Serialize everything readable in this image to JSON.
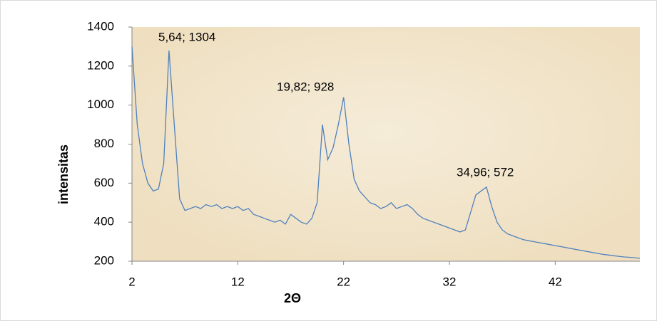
{
  "chart_data": {
    "type": "line",
    "x_label": "2Θ",
    "y_label": "intensitas",
    "x": [
      2,
      2.5,
      3,
      3.5,
      4,
      4.5,
      5,
      5.5,
      6,
      6.5,
      7,
      7.5,
      8,
      8.5,
      9,
      9.5,
      10,
      10.5,
      11,
      11.5,
      12,
      12.5,
      13,
      13.5,
      14,
      14.5,
      15,
      15.5,
      16,
      16.5,
      17,
      17.5,
      18,
      18.5,
      19,
      19.5,
      20,
      20.5,
      21,
      21.5,
      22,
      22.5,
      23,
      23.5,
      24,
      24.5,
      25,
      25.5,
      26,
      26.5,
      27,
      27.5,
      28,
      28.5,
      29,
      29.5,
      30,
      30.5,
      31,
      31.5,
      32,
      32.5,
      33,
      33.5,
      34,
      34.5,
      35,
      35.5,
      36,
      36.5,
      37,
      37.5,
      38,
      38.5,
      39,
      39.5,
      40,
      40.5,
      41,
      41.5,
      42,
      42.5,
      43,
      43.5,
      44,
      44.5,
      45,
      45.5,
      46,
      46.5,
      47,
      47.5,
      48,
      48.5,
      49,
      49.5,
      50
    ],
    "series": [
      {
        "color": "#4f81bd",
        "values": [
          1300,
          900,
          700,
          600,
          560,
          570,
          700,
          1280,
          900,
          520,
          460,
          470,
          480,
          470,
          490,
          480,
          490,
          470,
          480,
          470,
          480,
          460,
          470,
          440,
          430,
          420,
          410,
          400,
          410,
          390,
          440,
          420,
          400,
          390,
          420,
          500,
          900,
          720,
          780,
          900,
          1040,
          800,
          620,
          560,
          530,
          500,
          490,
          470,
          480,
          500,
          470,
          480,
          490,
          470,
          440,
          420,
          410,
          400,
          390,
          380,
          370,
          360,
          350,
          360,
          450,
          540,
          560,
          580,
          480,
          400,
          360,
          340,
          330,
          320,
          310,
          305,
          300,
          295,
          290,
          285,
          280,
          275,
          270,
          265,
          260,
          255,
          250,
          245,
          240,
          235,
          232,
          228,
          225,
          222,
          220,
          218,
          215
        ]
      }
    ],
    "annotations": [
      "5,64; 1304",
      "19,82; 928",
      "34,96; 572"
    ],
    "xlim": [
      2,
      50
    ],
    "xticks": [
      2,
      12,
      22,
      32,
      42
    ],
    "ylim": [
      200,
      1400
    ],
    "yticks": [
      200,
      400,
      600,
      800,
      1000,
      1200,
      1400
    ]
  }
}
